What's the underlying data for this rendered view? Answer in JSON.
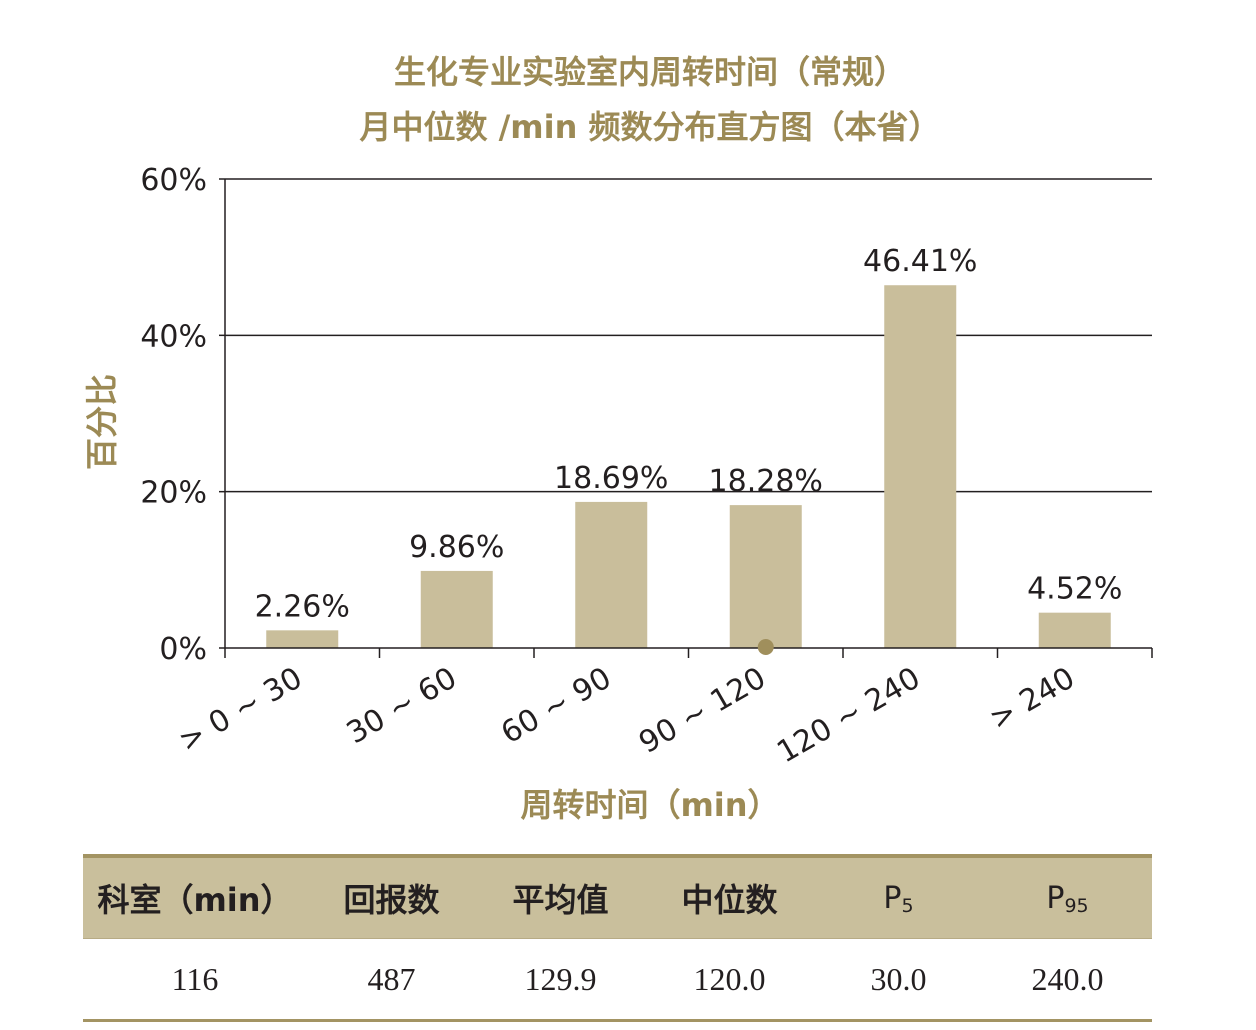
{
  "chart_data": {
    "type": "bar",
    "title_lines": [
      "生化专业实验室内周转时间（常规）",
      "月中位数 /min 频数分布直方图（本省）"
    ],
    "xlabel": "周转时间（min）",
    "ylabel": "百分比",
    "categories": [
      "> 0 ~ 30",
      "30 ~ 60",
      "60 ~ 90",
      "90 ~ 120",
      "120 ~ 240",
      "> 240"
    ],
    "values": [
      2.26,
      9.86,
      18.69,
      18.28,
      46.41,
      4.52
    ],
    "data_labels": [
      "2.26%",
      "9.86%",
      "18.69%",
      "18.28%",
      "46.41%",
      "4.52%"
    ],
    "ylim": [
      0,
      60
    ],
    "yticks": [
      0,
      20,
      40,
      60
    ],
    "ytick_labels": [
      "0%",
      "20%",
      "40%",
      "60%"
    ],
    "grid": true,
    "legend": "none",
    "marker_index": 3,
    "colors": {
      "bar": "#c9be9b",
      "accent": "#9c8a55",
      "marker": "#a08f5c"
    }
  },
  "table": {
    "headers": [
      {
        "text": "科室（min）"
      },
      {
        "text": "回报数"
      },
      {
        "text": "平均值"
      },
      {
        "text": "中位数"
      },
      {
        "text": "P",
        "sub": "5"
      },
      {
        "text": "P",
        "sub": "95"
      }
    ],
    "rows": [
      [
        "116",
        "487",
        "129.9",
        "120.0",
        "30.0",
        "240.0"
      ]
    ]
  }
}
